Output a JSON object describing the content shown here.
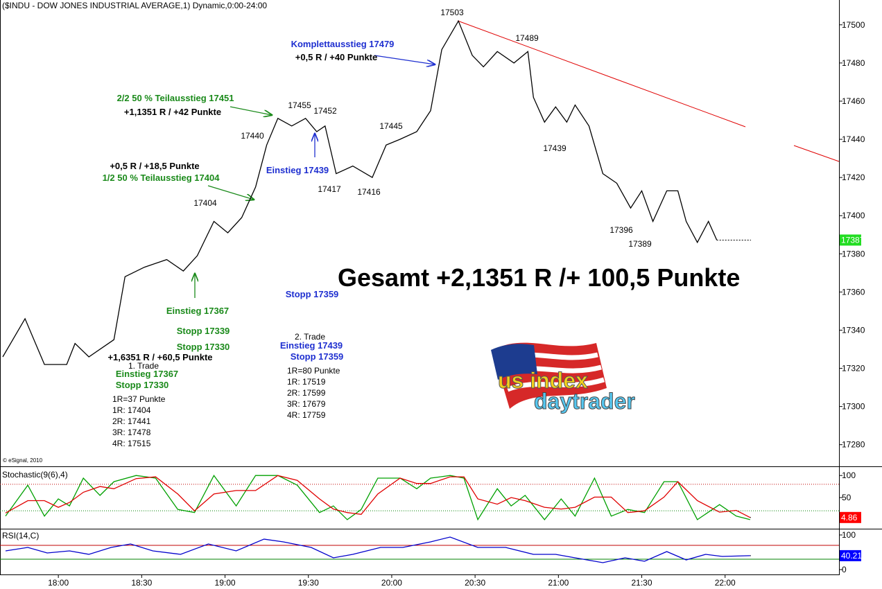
{
  "title": "($INDU - DOW JONES INDUSTRIAL AVERAGE,1) Dynamic,0:00-24:00",
  "copyright": "© eSignal, 2010",
  "headline": "Gesamt +2,1351 R /+ 100,5 Punkte",
  "logo": [
    "us index",
    "daytrader"
  ],
  "annotations": [
    "17503",
    "17489",
    "Komplettausstieg 17479",
    "+0,5 R / +40 Punkte",
    "2/2 50 % Teilausstieg 17451",
    "+1,1351 R / +42 Punkte",
    "17455",
    "17452",
    "17440",
    "17445",
    "17439",
    "Einstieg 17439",
    "17417",
    "17416",
    "+0,5 R / +18,5 Punkte",
    "1/2 50 % Teilausstieg 17404",
    "17404",
    "17396",
    "17389",
    "Einstieg 17367",
    "Stopp 17339",
    "Stopp 17330",
    "Stopp 17359",
    "+1,6351 R / +60,5 Punkte",
    "1. Trade",
    "Einstieg 17367",
    "Stopp 17330",
    "1R=37 Punkte",
    "1R: 17404",
    "2R: 17441",
    "3R: 17478",
    "4R: 17515",
    "2. Trade",
    "Einstieg 17439",
    "Stopp 17359",
    "1R=80 Punkte",
    "1R: 17519",
    "2R: 17599",
    "3R: 17679",
    "4R: 17759"
  ],
  "chart_data": [
    {
      "type": "line",
      "xlim": [
        "17:39",
        "22:41"
      ],
      "xticks": [
        "18:00",
        "18:30",
        "19:00",
        "19:30",
        "20:00",
        "20:30",
        "21:00",
        "21:30",
        "22:00"
      ],
      "ylim": [
        17269,
        17513
      ],
      "yticks": [
        17280,
        17300,
        17320,
        17340,
        17360,
        17380,
        17400,
        17420,
        17440,
        17460,
        17480,
        17500
      ],
      "x": [
        "17:40",
        "17:48",
        "17:55",
        "18:03",
        "18:06",
        "18:11",
        "18:20",
        "18:24",
        "18:31",
        "18:39",
        "18:45",
        "18:50",
        "18:56",
        "19:01",
        "19:06",
        "19:11",
        "19:15",
        "19:19",
        "19:24",
        "19:29",
        "19:33",
        "19:36",
        "19:40",
        "19:46",
        "19:53",
        "19:58",
        "20:03",
        "20:09",
        "20:14",
        "20:18",
        "20:24",
        "20:29",
        "20:33",
        "20:38",
        "20:44",
        "20:49",
        "20:51",
        "20:55",
        "20:59",
        "21:03",
        "21:06",
        "21:11",
        "21:16",
        "21:21",
        "21:26",
        "21:30",
        "21:34",
        "21:39",
        "21:43",
        "21:46",
        "21:50",
        "21:54",
        "21:57"
      ],
      "series": [
        {
          "color": "#000000",
          "last_color": "#22dd22",
          "values": [
            17326,
            17346,
            17322,
            17322,
            17333,
            17326,
            17335,
            17368,
            17373,
            17377,
            17371,
            17379,
            17397,
            17391,
            17399,
            17415,
            17437,
            17451,
            17447,
            17451,
            17444,
            17447,
            17422,
            17426,
            17420,
            17437,
            17440,
            17444,
            17455,
            17487,
            17502,
            17484,
            17478,
            17486,
            17480,
            17486,
            17462,
            17449,
            17457,
            17449,
            17458,
            17447,
            17422,
            17417,
            17404,
            17413,
            17397,
            17413,
            17413,
            17397,
            17386,
            17397,
            17387.21
          ]
        }
      ]
    },
    {
      "type": "line",
      "title": "Stochastic(9(6),4)",
      "xlim": [
        "17:39",
        "22:41"
      ],
      "ylim": [
        -19,
        116
      ],
      "yticks": [
        50,
        100
      ],
      "reference_lines": [
        {
          "value": 80,
          "color": "#c00000"
        },
        {
          "value": 20,
          "color": "#008000"
        }
      ],
      "x": [
        "17:41",
        "17:49",
        "17:55",
        "18:00",
        "18:04",
        "18:09",
        "18:15",
        "18:20",
        "18:28",
        "18:35",
        "18:43",
        "18:49",
        "18:56",
        "19:04",
        "19:11",
        "19:19",
        "19:26",
        "19:34",
        "19:39",
        "19:44",
        "19:49",
        "19:55",
        "20:03",
        "20:09",
        "20:14",
        "20:21",
        "20:26",
        "20:31",
        "20:38",
        "20:43",
        "20:48",
        "20:55",
        "21:01",
        "21:06",
        "21:13",
        "21:19",
        "21:25",
        "21:31",
        "21:38",
        "21:43",
        "21:50",
        "21:58",
        "22:04",
        "22:09"
      ],
      "series": [
        {
          "color": "#00a000",
          "values": [
            8,
            78,
            8,
            47,
            31,
            94,
            55,
            86,
            100,
            94,
            23,
            16,
            100,
            31,
            100,
            100,
            78,
            16,
            31,
            0,
            23,
            94,
            94,
            70,
            94,
            100,
            94,
            0,
            70,
            31,
            55,
            0,
            47,
            8,
            94,
            8,
            23,
            16,
            86,
            86,
            0,
            34,
            8,
            0
          ]
        },
        {
          "color": "#e00000",
          "last_color": "#ff0000",
          "values": [
            15,
            43,
            43,
            28,
            39,
            62,
            75,
            70,
            93,
            97,
            58,
            20,
            58,
            66,
            66,
            100,
            89,
            47,
            24,
            16,
            12,
            58,
            94,
            82,
            82,
            97,
            97,
            47,
            35,
            50,
            43,
            28,
            24,
            28,
            51,
            51,
            16,
            20,
            51,
            86,
            43,
            17,
            21,
            4.86
          ]
        }
      ]
    },
    {
      "type": "line",
      "title": "RSI(14,C)",
      "xlim": [
        "17:39",
        "22:41"
      ],
      "ylim": [
        -16,
        116
      ],
      "yticks": [
        0,
        100
      ],
      "reference_lines": [
        {
          "value": 70,
          "color": "#c00000"
        },
        {
          "value": 30,
          "color": "#008000"
        }
      ],
      "x": [
        "17:41",
        "17:49",
        "17:56",
        "18:04",
        "18:11",
        "18:19",
        "18:26",
        "18:34",
        "18:44",
        "18:54",
        "19:04",
        "19:14",
        "19:21",
        "19:31",
        "19:39",
        "19:46",
        "19:56",
        "20:04",
        "20:14",
        "20:21",
        "20:31",
        "20:41",
        "20:51",
        "20:59",
        "21:06",
        "21:16",
        "21:24",
        "21:31",
        "21:39",
        "21:46",
        "21:53",
        "21:59",
        "22:09"
      ],
      "series": [
        {
          "color": "#0000cc",
          "last_color": "#0000ff",
          "values": [
            54,
            64,
            48,
            54,
            44,
            64,
            74,
            54,
            44,
            74,
            54,
            88,
            80,
            64,
            34,
            44,
            64,
            64,
            80,
            94,
            64,
            64,
            44,
            44,
            34,
            20,
            34,
            24,
            52,
            28,
            44,
            38,
            40.21
          ]
        }
      ]
    }
  ]
}
